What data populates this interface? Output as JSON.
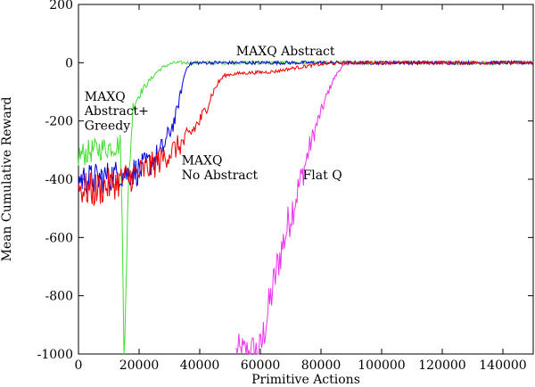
{
  "chart_data": {
    "type": "line",
    "title": "",
    "xlabel": "Primitive Actions",
    "ylabel": "Mean Cumulative Reward",
    "xlim": [
      0,
      150000
    ],
    "ylim": [
      -1000,
      200
    ],
    "x_ticks": [
      0,
      20000,
      40000,
      60000,
      80000,
      100000,
      120000,
      140000
    ],
    "y_ticks": [
      -1000,
      -800,
      -600,
      -400,
      -200,
      0,
      200
    ],
    "grid": false,
    "legend": "none",
    "annotations": [
      {
        "text": "MAXQ Abstract",
        "x": 52000,
        "y": 25
      },
      {
        "text": "MAXQ",
        "x": 2000,
        "y": -130
      },
      {
        "text": "Abstract+",
        "x": 2000,
        "y": -180
      },
      {
        "text": "Greedy",
        "x": 2000,
        "y": -230
      },
      {
        "text": "MAXQ",
        "x": 34000,
        "y": -350
      },
      {
        "text": "No Abstract",
        "x": 34000,
        "y": -400
      },
      {
        "text": "Flat Q",
        "x": 74000,
        "y": -400
      }
    ],
    "series": [
      {
        "name": "MAXQ Abstract",
        "color": "#0000dd",
        "x": [
          0,
          5000,
          10000,
          15000,
          20000,
          22000,
          24000,
          26000,
          28000,
          30000,
          32000,
          33000,
          34000,
          35000,
          36000,
          38000,
          40000,
          50000,
          60000,
          80000,
          100000,
          120000,
          140000,
          150000
        ],
        "y": [
          -400,
          -400,
          -390,
          -380,
          -370,
          -355,
          -340,
          -320,
          -290,
          -240,
          -190,
          -140,
          -90,
          -40,
          -10,
          0,
          0,
          0,
          0,
          0,
          0,
          0,
          0,
          0
        ]
      },
      {
        "name": "MAXQ Abstract+Greedy",
        "color": "#44dd33",
        "x": [
          0,
          5000,
          10000,
          14000,
          15000,
          16000,
          17000,
          18000,
          20000,
          22000,
          24000,
          26000,
          28000,
          30000,
          32000,
          34000,
          36000,
          40000,
          60000,
          80000,
          100000,
          120000,
          140000,
          150000
        ],
        "y": [
          -320,
          -300,
          -290,
          -280,
          -1000,
          -600,
          -320,
          -150,
          -110,
          -80,
          -55,
          -30,
          -15,
          -5,
          0,
          0,
          0,
          0,
          0,
          0,
          0,
          0,
          0,
          0
        ]
      },
      {
        "name": "MAXQ No Abstract",
        "color": "#ee0000",
        "x": [
          0,
          5000,
          10000,
          15000,
          20000,
          25000,
          30000,
          35000,
          40000,
          42000,
          44000,
          46000,
          48000,
          50000,
          52000,
          55000,
          60000,
          65000,
          70000,
          75000,
          80000,
          85000,
          90000,
          100000,
          120000,
          140000,
          150000
        ],
        "y": [
          -430,
          -440,
          -420,
          -400,
          -380,
          -350,
          -310,
          -270,
          -200,
          -160,
          -110,
          -70,
          -45,
          -40,
          -38,
          -35,
          -33,
          -30,
          -20,
          -12,
          -5,
          -2,
          0,
          0,
          0,
          0,
          0
        ]
      },
      {
        "name": "Flat Q",
        "color": "#ee33ee",
        "x": [
          52000,
          56000,
          60000,
          62000,
          64000,
          66000,
          68000,
          70000,
          72000,
          74000,
          76000,
          78000,
          80000,
          82000,
          84000,
          86000,
          88000,
          90000,
          100000,
          120000,
          140000,
          150000
        ],
        "y": [
          -1000,
          -1000,
          -990,
          -880,
          -780,
          -680,
          -600,
          -520,
          -450,
          -380,
          -300,
          -230,
          -170,
          -110,
          -60,
          -25,
          -5,
          0,
          0,
          0,
          0,
          0
        ]
      }
    ]
  }
}
